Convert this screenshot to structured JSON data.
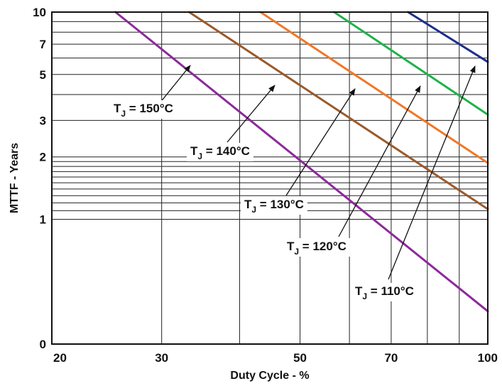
{
  "chart_data": {
    "type": "line",
    "title": "",
    "xlabel": "Duty Cycle - %",
    "ylabel": "MTTF - Years",
    "x_scale": "log",
    "y_scale": "log",
    "xlim": [
      20,
      100
    ],
    "ylim": [
      0.25,
      10
    ],
    "x_ticks": [
      20,
      30,
      50,
      70,
      100
    ],
    "x_tick_labels": [
      "20",
      "30",
      "50",
      "70",
      "100"
    ],
    "y_ticks": [
      0.25,
      1,
      2,
      3,
      5,
      7,
      10
    ],
    "y_tick_labels": [
      "0",
      "1",
      "2",
      "3",
      "5",
      "7",
      "10"
    ],
    "grid": true,
    "series": [
      {
        "name": "T_J = 150°C",
        "label_main": "T",
        "label_sub": "J",
        "label_rest": " = 150°C",
        "color": "#8c2a9a",
        "points": [
          [
            25.3,
            10
          ],
          [
            100,
            0.36
          ]
        ]
      },
      {
        "name": "T_J = 140°C",
        "label_main": "T",
        "label_sub": "J",
        "label_rest": " = 140°C",
        "color": "#9b5a2a",
        "points": [
          [
            33.2,
            10
          ],
          [
            100,
            1.12
          ]
        ]
      },
      {
        "name": "T_J = 130°C",
        "label_main": "T",
        "label_sub": "J",
        "label_rest": " = 130°C",
        "color": "#f07828",
        "points": [
          [
            43.2,
            10
          ],
          [
            100,
            1.87
          ]
        ]
      },
      {
        "name": "T_J = 120°C",
        "label_main": "T",
        "label_sub": "J",
        "label_rest": " = 120°C",
        "color": "#1db34a",
        "points": [
          [
            56.7,
            10
          ],
          [
            100,
            3.2
          ]
        ]
      },
      {
        "name": "T_J = 110°C",
        "label_main": "T",
        "label_sub": "J",
        "label_rest": " = 110°C",
        "color": "#1c2f8c",
        "points": [
          [
            74.5,
            10
          ],
          [
            100,
            5.75
          ]
        ]
      }
    ]
  }
}
